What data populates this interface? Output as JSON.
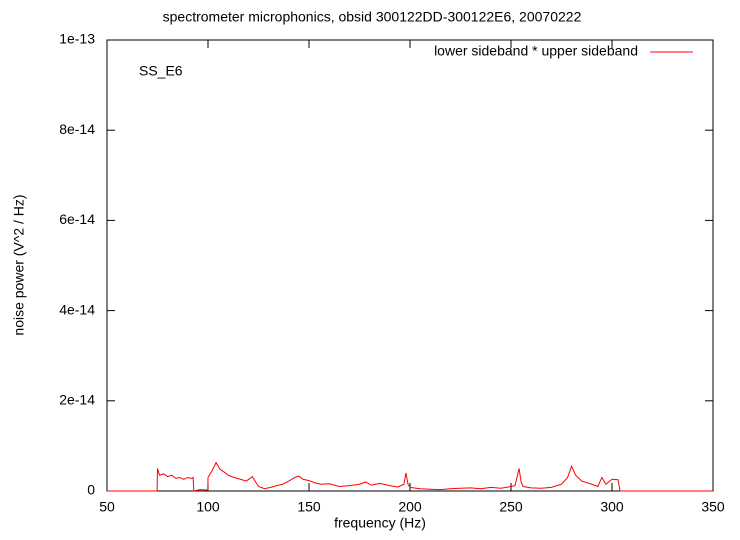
{
  "chart_data": {
    "type": "line",
    "title": "spectrometer microphonics, obsid 300122DD-300122E6, 20070222",
    "annotation": "SS_E6",
    "x_label": "frequency (Hz)",
    "y_label": "noise power (V^2 / Hz)",
    "xlim": [
      50,
      350
    ],
    "ylim": [
      0,
      1e-13
    ],
    "xticks": [
      50,
      100,
      150,
      200,
      250,
      300,
      350
    ],
    "yticks": [
      0,
      2e-14,
      4e-14,
      6e-14,
      8e-14,
      1e-13
    ],
    "legend": "top-right",
    "x": [
      50,
      74.8,
      75,
      76,
      78,
      80,
      82,
      84,
      86,
      88,
      90,
      92,
      92.6,
      93,
      96,
      99.9,
      100,
      102,
      104,
      106,
      108,
      110,
      113,
      116,
      119,
      122,
      123,
      125,
      128,
      131,
      134,
      137,
      140,
      143,
      145,
      147,
      150,
      153,
      156,
      160,
      165,
      170,
      175,
      178,
      181,
      185,
      190,
      194,
      197,
      198,
      199,
      200,
      205,
      210,
      215,
      220,
      225,
      230,
      235,
      240,
      245,
      250,
      252,
      254,
      255,
      256,
      260,
      265,
      270,
      275,
      278,
      280,
      282,
      285,
      290,
      293,
      295,
      297,
      300,
      303,
      304,
      304.5,
      350
    ],
    "series": [
      {
        "name": "lower sideband * upper sideband",
        "color": "#ff0000",
        "values": [
          0,
          0,
          5e-15,
          3.5e-15,
          3.8e-15,
          3.2e-15,
          3.5e-15,
          2.8e-15,
          3e-15,
          2.6e-15,
          3e-15,
          2.8e-15,
          3e-15,
          0,
          3e-16,
          2e-16,
          3e-15,
          4.5e-15,
          6.3e-15,
          4.8e-15,
          4.2e-15,
          3.5e-15,
          3e-15,
          2.6e-15,
          2.2e-15,
          3.2e-15,
          2.4e-15,
          1e-15,
          5e-16,
          8e-16,
          1.2e-15,
          1.5e-15,
          2.2e-15,
          3e-15,
          3.3e-15,
          2.6e-15,
          2.3e-15,
          1.8e-15,
          1.5e-15,
          1.6e-15,
          1e-15,
          1.2e-15,
          1.5e-15,
          2e-15,
          1.3e-15,
          1.7e-15,
          1.2e-15,
          9e-16,
          1.5e-15,
          4e-15,
          1.5e-15,
          8e-16,
          5e-16,
          4e-16,
          3e-16,
          5e-16,
          6e-16,
          7e-16,
          5e-16,
          8e-16,
          6e-16,
          1e-15,
          1.2e-15,
          5e-15,
          2e-15,
          1e-15,
          7e-16,
          6e-16,
          8e-16,
          1.5e-15,
          3e-15,
          5.5e-15,
          3.5e-15,
          2.2e-15,
          1.5e-15,
          1e-15,
          3e-15,
          1.5e-15,
          2.6e-15,
          2.5e-15,
          0,
          0,
          0
        ]
      }
    ]
  }
}
